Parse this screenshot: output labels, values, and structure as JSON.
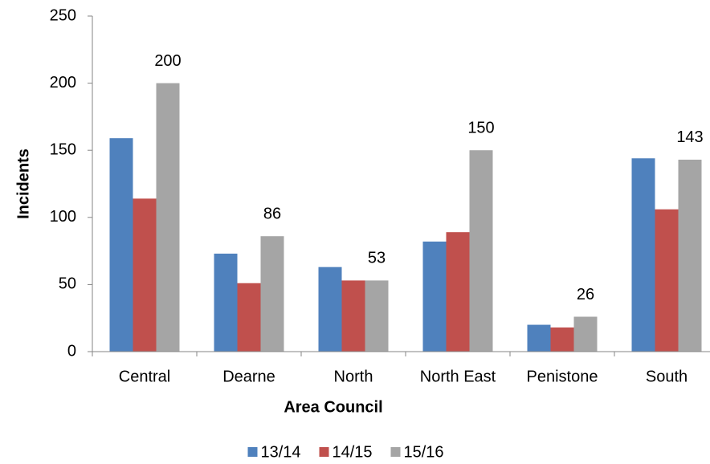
{
  "chart_data": {
    "type": "bar",
    "x_label": "Area Council",
    "y_label": "Incidents",
    "categories": [
      "Central",
      "Dearne",
      "North",
      "North East",
      "Penistone",
      "South"
    ],
    "series": [
      {
        "name": "13/14",
        "color": "#4f81bd",
        "values": [
          159,
          73,
          63,
          82,
          20,
          144
        ]
      },
      {
        "name": "14/15",
        "color": "#c0504d",
        "values": [
          114,
          51,
          53,
          89,
          18,
          106
        ]
      },
      {
        "name": "15/16",
        "color": "#a5a5a5",
        "values": [
          200,
          86,
          53,
          150,
          26,
          143
        ],
        "data_labels": true
      }
    ],
    "ylim": [
      0,
      250
    ],
    "yticks": [
      0,
      50,
      100,
      150,
      200,
      250
    ],
    "grid": false,
    "legend": "bottom"
  }
}
